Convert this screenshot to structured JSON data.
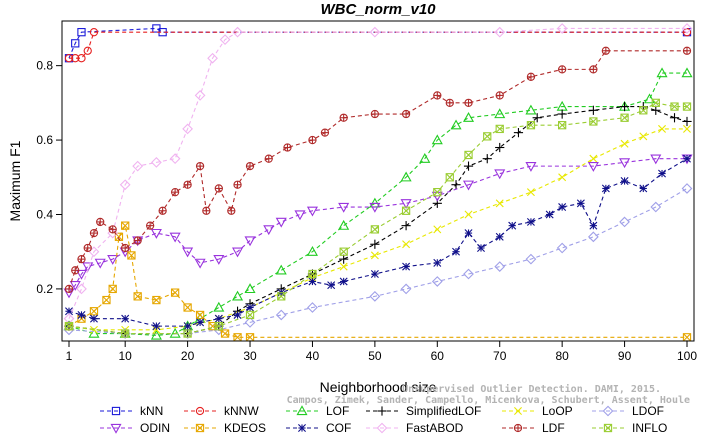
{
  "chart_data": {
    "type": "line",
    "title": "WBC_norm_v10",
    "xlabel": "Neighborhood size",
    "ylabel": "Maximum F1",
    "xlim": [
      1,
      100
    ],
    "ylim": [
      0.06,
      0.92
    ],
    "xticks": [
      1,
      10,
      20,
      30,
      40,
      50,
      60,
      70,
      80,
      90,
      100
    ],
    "yticks": [
      0.2,
      0.4,
      0.6,
      0.8
    ],
    "legend_position": "bottom",
    "watermark": [
      "Campos, Zimek, Sander, Campello, Micenkova, Schubert, Assent, Houle",
      "Unsupervised Outlier Detection. DAMI, 2015."
    ],
    "series": [
      {
        "name": "kNN",
        "color": "#1a1ad9",
        "marker": "square",
        "points": [
          [
            1,
            0.82
          ],
          [
            2,
            0.86
          ],
          [
            3,
            0.89
          ],
          [
            15,
            0.9
          ],
          [
            16,
            0.89
          ],
          [
            100,
            0.89
          ]
        ]
      },
      {
        "name": "kNNW",
        "color": "#e62020",
        "marker": "circle",
        "points": [
          [
            1,
            0.82
          ],
          [
            2,
            0.82
          ],
          [
            3,
            0.82
          ],
          [
            4,
            0.84
          ],
          [
            5,
            0.89
          ],
          [
            100,
            0.89
          ]
        ]
      },
      {
        "name": "LOF",
        "color": "#22cc22",
        "marker": "triangle-up",
        "points": [
          [
            1,
            0.1
          ],
          [
            5,
            0.08
          ],
          [
            10,
            0.08
          ],
          [
            15,
            0.075
          ],
          [
            18,
            0.08
          ],
          [
            20,
            0.1
          ],
          [
            22,
            0.12
          ],
          [
            25,
            0.15
          ],
          [
            28,
            0.18
          ],
          [
            30,
            0.2
          ],
          [
            35,
            0.25
          ],
          [
            40,
            0.3
          ],
          [
            45,
            0.37
          ],
          [
            50,
            0.43
          ],
          [
            55,
            0.5
          ],
          [
            58,
            0.55
          ],
          [
            60,
            0.6
          ],
          [
            63,
            0.64
          ],
          [
            65,
            0.66
          ],
          [
            70,
            0.67
          ],
          [
            75,
            0.68
          ],
          [
            80,
            0.69
          ],
          [
            90,
            0.69
          ],
          [
            94,
            0.71
          ],
          [
            96,
            0.78
          ],
          [
            100,
            0.78
          ]
        ]
      },
      {
        "name": "SimplifiedLOF",
        "color": "#000000",
        "marker": "plus",
        "points": [
          [
            1,
            0.1
          ],
          [
            10,
            0.08
          ],
          [
            20,
            0.08
          ],
          [
            25,
            0.1
          ],
          [
            28,
            0.14
          ],
          [
            30,
            0.16
          ],
          [
            35,
            0.2
          ],
          [
            40,
            0.24
          ],
          [
            45,
            0.28
          ],
          [
            50,
            0.32
          ],
          [
            55,
            0.37
          ],
          [
            60,
            0.43
          ],
          [
            63,
            0.48
          ],
          [
            65,
            0.53
          ],
          [
            68,
            0.55
          ],
          [
            70,
            0.58
          ],
          [
            73,
            0.62
          ],
          [
            76,
            0.66
          ],
          [
            80,
            0.67
          ],
          [
            85,
            0.68
          ],
          [
            90,
            0.69
          ],
          [
            93,
            0.69
          ],
          [
            95,
            0.68
          ],
          [
            98,
            0.66
          ],
          [
            100,
            0.65
          ]
        ]
      },
      {
        "name": "LoOP",
        "color": "#e8e800",
        "marker": "x",
        "points": [
          [
            1,
            0.1
          ],
          [
            5,
            0.09
          ],
          [
            10,
            0.09
          ],
          [
            15,
            0.09
          ],
          [
            20,
            0.1
          ],
          [
            25,
            0.12
          ],
          [
            30,
            0.15
          ],
          [
            35,
            0.19
          ],
          [
            40,
            0.23
          ],
          [
            45,
            0.26
          ],
          [
            50,
            0.29
          ],
          [
            55,
            0.32
          ],
          [
            60,
            0.36
          ],
          [
            65,
            0.4
          ],
          [
            70,
            0.43
          ],
          [
            75,
            0.46
          ],
          [
            80,
            0.5
          ],
          [
            85,
            0.55
          ],
          [
            90,
            0.59
          ],
          [
            93,
            0.61
          ],
          [
            96,
            0.63
          ],
          [
            100,
            0.63
          ]
        ]
      },
      {
        "name": "LDOF",
        "color": "#a0a0e8",
        "marker": "diamond",
        "points": [
          [
            1,
            0.09
          ],
          [
            10,
            0.08
          ],
          [
            20,
            0.08
          ],
          [
            25,
            0.09
          ],
          [
            30,
            0.11
          ],
          [
            35,
            0.13
          ],
          [
            40,
            0.15
          ],
          [
            50,
            0.18
          ],
          [
            55,
            0.2
          ],
          [
            60,
            0.22
          ],
          [
            65,
            0.24
          ],
          [
            70,
            0.26
          ],
          [
            75,
            0.28
          ],
          [
            80,
            0.31
          ],
          [
            85,
            0.34
          ],
          [
            90,
            0.38
          ],
          [
            95,
            0.42
          ],
          [
            100,
            0.47
          ]
        ]
      },
      {
        "name": "ODIN",
        "color": "#9933dd",
        "marker": "triangle-down",
        "points": [
          [
            1,
            0.19
          ],
          [
            2,
            0.21
          ],
          [
            3,
            0.24
          ],
          [
            4,
            0.26
          ],
          [
            6,
            0.27
          ],
          [
            8,
            0.28
          ],
          [
            10,
            0.3
          ],
          [
            12,
            0.33
          ],
          [
            15,
            0.35
          ],
          [
            18,
            0.34
          ],
          [
            20,
            0.3
          ],
          [
            22,
            0.27
          ],
          [
            25,
            0.28
          ],
          [
            28,
            0.3
          ],
          [
            30,
            0.33
          ],
          [
            33,
            0.36
          ],
          [
            35,
            0.38
          ],
          [
            38,
            0.4
          ],
          [
            40,
            0.41
          ],
          [
            45,
            0.42
          ],
          [
            50,
            0.42
          ],
          [
            55,
            0.43
          ],
          [
            60,
            0.45
          ],
          [
            65,
            0.48
          ],
          [
            70,
            0.51
          ],
          [
            75,
            0.53
          ],
          [
            85,
            0.53
          ],
          [
            90,
            0.54
          ],
          [
            95,
            0.55
          ],
          [
            100,
            0.55
          ]
        ]
      },
      {
        "name": "KDEOS",
        "color": "#e6a700",
        "marker": "square-x",
        "points": [
          [
            1,
            0.1
          ],
          [
            3,
            0.12
          ],
          [
            5,
            0.14
          ],
          [
            7,
            0.17
          ],
          [
            8,
            0.2
          ],
          [
            9,
            0.34
          ],
          [
            10,
            0.37
          ],
          [
            11,
            0.29
          ],
          [
            12,
            0.18
          ],
          [
            15,
            0.17
          ],
          [
            18,
            0.19
          ],
          [
            20,
            0.15
          ],
          [
            22,
            0.13
          ],
          [
            24,
            0.1
          ],
          [
            26,
            0.08
          ],
          [
            28,
            0.07
          ],
          [
            30,
            0.07
          ],
          [
            100,
            0.07
          ]
        ]
      },
      {
        "name": "COF",
        "color": "#10108a",
        "marker": "star",
        "points": [
          [
            1,
            0.14
          ],
          [
            3,
            0.13
          ],
          [
            5,
            0.12
          ],
          [
            10,
            0.12
          ],
          [
            15,
            0.1
          ],
          [
            20,
            0.1
          ],
          [
            22,
            0.11
          ],
          [
            25,
            0.12
          ],
          [
            28,
            0.13
          ],
          [
            30,
            0.15
          ],
          [
            35,
            0.19
          ],
          [
            40,
            0.22
          ],
          [
            43,
            0.21
          ],
          [
            45,
            0.22
          ],
          [
            50,
            0.24
          ],
          [
            55,
            0.26
          ],
          [
            60,
            0.27
          ],
          [
            63,
            0.3
          ],
          [
            65,
            0.35
          ],
          [
            67,
            0.31
          ],
          [
            70,
            0.34
          ],
          [
            72,
            0.37
          ],
          [
            75,
            0.38
          ],
          [
            78,
            0.4
          ],
          [
            80,
            0.42
          ],
          [
            83,
            0.43
          ],
          [
            85,
            0.37
          ],
          [
            87,
            0.47
          ],
          [
            90,
            0.49
          ],
          [
            93,
            0.47
          ],
          [
            96,
            0.51
          ],
          [
            100,
            0.55
          ]
        ]
      },
      {
        "name": "FastABOD",
        "color": "#f0b3f0",
        "marker": "diamond",
        "points": [
          [
            1,
            0.12
          ],
          [
            3,
            0.2
          ],
          [
            5,
            0.3
          ],
          [
            8,
            0.35
          ],
          [
            10,
            0.48
          ],
          [
            12,
            0.53
          ],
          [
            15,
            0.54
          ],
          [
            18,
            0.55
          ],
          [
            20,
            0.63
          ],
          [
            22,
            0.72
          ],
          [
            24,
            0.82
          ],
          [
            26,
            0.87
          ],
          [
            28,
            0.89
          ],
          [
            50,
            0.89
          ],
          [
            70,
            0.89
          ],
          [
            80,
            0.9
          ],
          [
            100,
            0.9
          ]
        ]
      },
      {
        "name": "LDF",
        "color": "#b02a2a",
        "marker": "circle-plus",
        "points": [
          [
            1,
            0.2
          ],
          [
            2,
            0.25
          ],
          [
            3,
            0.28
          ],
          [
            4,
            0.31
          ],
          [
            5,
            0.35
          ],
          [
            6,
            0.38
          ],
          [
            8,
            0.36
          ],
          [
            10,
            0.31
          ],
          [
            12,
            0.33
          ],
          [
            14,
            0.37
          ],
          [
            16,
            0.41
          ],
          [
            18,
            0.46
          ],
          [
            20,
            0.48
          ],
          [
            22,
            0.53
          ],
          [
            23,
            0.41
          ],
          [
            25,
            0.47
          ],
          [
            27,
            0.41
          ],
          [
            28,
            0.48
          ],
          [
            30,
            0.53
          ],
          [
            33,
            0.55
          ],
          [
            36,
            0.58
          ],
          [
            40,
            0.6
          ],
          [
            42,
            0.62
          ],
          [
            45,
            0.66
          ],
          [
            50,
            0.67
          ],
          [
            55,
            0.67
          ],
          [
            60,
            0.72
          ],
          [
            62,
            0.7
          ],
          [
            65,
            0.7
          ],
          [
            70,
            0.72
          ],
          [
            75,
            0.77
          ],
          [
            80,
            0.79
          ],
          [
            85,
            0.79
          ],
          [
            87,
            0.84
          ],
          [
            100,
            0.84
          ]
        ]
      },
      {
        "name": "INFLO",
        "color": "#9acd32",
        "marker": "square-x",
        "points": [
          [
            1,
            0.1
          ],
          [
            10,
            0.08
          ],
          [
            20,
            0.08
          ],
          [
            25,
            0.1
          ],
          [
            30,
            0.13
          ],
          [
            35,
            0.18
          ],
          [
            40,
            0.24
          ],
          [
            45,
            0.3
          ],
          [
            50,
            0.36
          ],
          [
            55,
            0.41
          ],
          [
            60,
            0.46
          ],
          [
            62,
            0.5
          ],
          [
            65,
            0.56
          ],
          [
            68,
            0.61
          ],
          [
            70,
            0.63
          ],
          [
            75,
            0.64
          ],
          [
            80,
            0.64
          ],
          [
            85,
            0.65
          ],
          [
            90,
            0.66
          ],
          [
            93,
            0.68
          ],
          [
            95,
            0.7
          ],
          [
            98,
            0.69
          ],
          [
            100,
            0.69
          ]
        ]
      }
    ]
  }
}
